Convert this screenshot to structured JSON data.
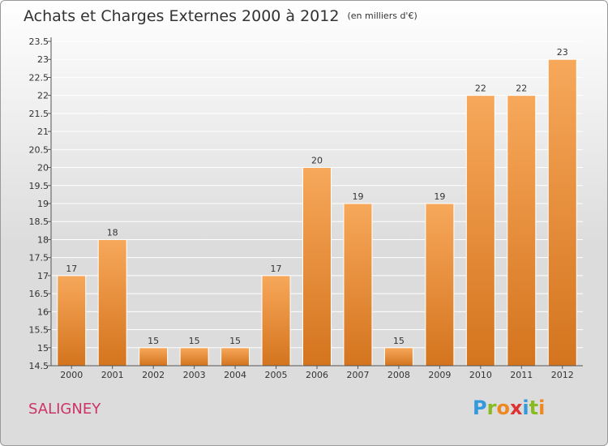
{
  "header": {
    "title": "Achats et Charges Externes 2000 à 2012",
    "unit": "(en milliers d'€)"
  },
  "commune": "SALIGNEY",
  "logo": {
    "letters": [
      "P",
      "r",
      "o",
      "x",
      "i",
      "t",
      "i"
    ],
    "colors": [
      "#3399dd",
      "#88bb22",
      "#ee8822",
      "#dd3333",
      "#3399dd",
      "#88bb22",
      "#ee8822"
    ]
  },
  "chart_data": {
    "type": "bar",
    "title": "Achats et Charges Externes 2000 à 2012",
    "xlabel": "",
    "ylabel": "",
    "categories": [
      "2000",
      "2001",
      "2002",
      "2003",
      "2004",
      "2005",
      "2006",
      "2007",
      "2008",
      "2009",
      "2010",
      "2011",
      "2012"
    ],
    "values": [
      17,
      18,
      15,
      15,
      15,
      17,
      20,
      19,
      15,
      19,
      22,
      22,
      23
    ],
    "value_labels": [
      "17",
      "18",
      "15",
      "15",
      "15",
      "17",
      "20",
      "19",
      "15",
      "19",
      "22",
      "22",
      "23"
    ],
    "ylim": [
      14.5,
      23.5
    ],
    "yticks": [
      "14.5",
      "15",
      "15.5",
      "16",
      "16.5",
      "17",
      "17.5",
      "18",
      "18.5",
      "19",
      "19.5",
      "20",
      "20.5",
      "21",
      "21.5",
      "22",
      "22.5",
      "23",
      "23.5"
    ],
    "grid": true,
    "bar_color": "#f08a2a"
  }
}
